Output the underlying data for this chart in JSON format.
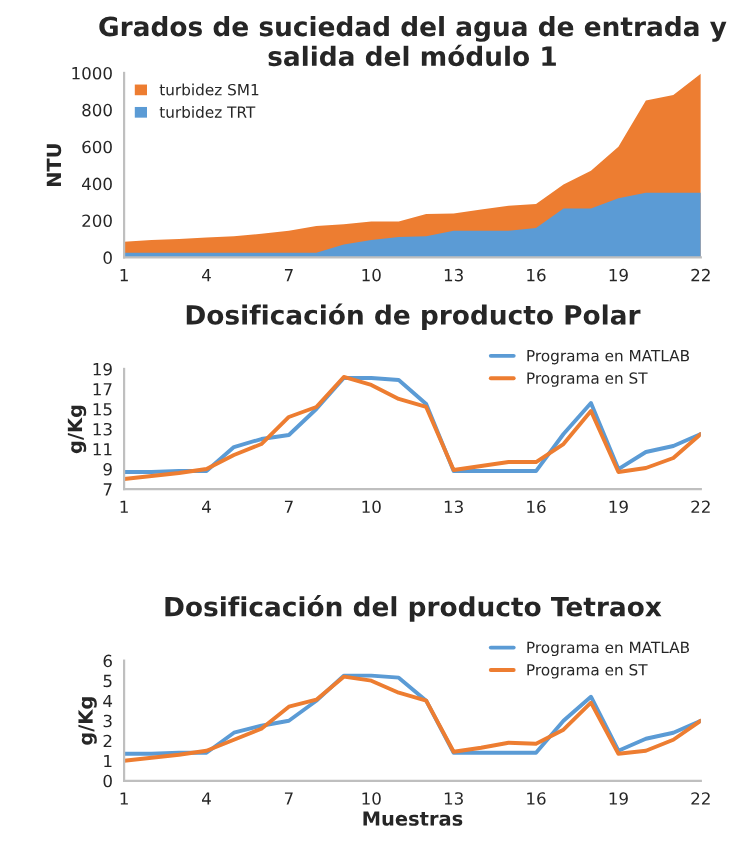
{
  "chart_data": [
    {
      "type": "area",
      "title": "Grados de suciedad del agua de entrada y salida del módulo 1",
      "ylabel": "NTU",
      "x": [
        1,
        2,
        3,
        4,
        5,
        6,
        7,
        8,
        9,
        10,
        11,
        12,
        13,
        14,
        15,
        16,
        17,
        18,
        19,
        20,
        21,
        22
      ],
      "xlim": [
        1,
        22
      ],
      "xticks": [
        1,
        4,
        7,
        10,
        13,
        16,
        19,
        22
      ],
      "ylim": [
        0,
        1000
      ],
      "yticks": [
        0,
        200,
        400,
        600,
        800,
        1000
      ],
      "legend": "top left",
      "grid": false,
      "series": [
        {
          "name": "turbidez SM1",
          "color": "#ed7d31",
          "values": [
            85,
            95,
            100,
            108,
            115,
            128,
            145,
            170,
            180,
            195,
            195,
            235,
            238,
            260,
            280,
            290,
            395,
            470,
            600,
            850,
            880,
            995
          ]
        },
        {
          "name": "turbidez TRT",
          "color": "#5b9bd5",
          "values": [
            25,
            25,
            25,
            25,
            25,
            25,
            25,
            25,
            70,
            95,
            110,
            115,
            145,
            145,
            145,
            160,
            265,
            265,
            320,
            350,
            350,
            350
          ]
        }
      ]
    },
    {
      "type": "line",
      "title": "Dosificación de producto Polar",
      "ylabel": "g/Kg",
      "x": [
        1,
        2,
        3,
        4,
        5,
        6,
        7,
        8,
        9,
        10,
        11,
        12,
        13,
        14,
        15,
        16,
        17,
        18,
        19,
        20,
        21,
        22
      ],
      "xlim": [
        1,
        22
      ],
      "xticks": [
        1,
        4,
        7,
        10,
        13,
        16,
        19,
        22
      ],
      "ylim": [
        7,
        19
      ],
      "yticks": [
        7,
        9,
        11,
        13,
        15,
        17,
        19
      ],
      "legend": "top right",
      "grid": false,
      "marker": "none",
      "line_style": "solid",
      "series": [
        {
          "name": "Programa en MATLAB",
          "color": "#5b9bd5",
          "values": [
            8.7,
            8.7,
            8.8,
            8.8,
            11.2,
            12.0,
            12.4,
            15.0,
            18.1,
            18.1,
            17.9,
            15.5,
            8.8,
            8.8,
            8.8,
            8.8,
            12.5,
            15.6,
            9.0,
            10.7,
            11.3,
            12.5
          ]
        },
        {
          "name": "Programa en ST",
          "color": "#ed7d31",
          "values": [
            8.0,
            8.3,
            8.6,
            9.0,
            10.4,
            11.5,
            14.2,
            15.2,
            18.2,
            17.4,
            16.0,
            15.2,
            8.9,
            9.3,
            9.7,
            9.7,
            11.5,
            14.8,
            8.7,
            9.1,
            10.1,
            12.5
          ]
        }
      ]
    },
    {
      "type": "line",
      "title": "Dosificación del producto Tetraox",
      "xlabel": "Muestras",
      "ylabel": "g/Kg",
      "x": [
        1,
        2,
        3,
        4,
        5,
        6,
        7,
        8,
        9,
        10,
        11,
        12,
        13,
        14,
        15,
        16,
        17,
        18,
        19,
        20,
        21,
        22
      ],
      "xlim": [
        1,
        22
      ],
      "xticks": [
        1,
        4,
        7,
        10,
        13,
        16,
        19,
        22
      ],
      "ylim": [
        0,
        6
      ],
      "yticks": [
        0,
        1,
        2,
        3,
        4,
        5,
        6
      ],
      "legend": "top right",
      "grid": false,
      "marker": "none",
      "line_style": "solid",
      "series": [
        {
          "name": "Programa en MATLAB",
          "color": "#5b9bd5",
          "values": [
            1.35,
            1.35,
            1.4,
            1.4,
            2.4,
            2.75,
            3.0,
            4.0,
            5.25,
            5.25,
            5.15,
            4.0,
            1.4,
            1.4,
            1.4,
            1.4,
            3.0,
            4.2,
            1.5,
            2.1,
            2.4,
            3.0
          ]
        },
        {
          "name": "Programa en ST",
          "color": "#ed7d31",
          "values": [
            1.0,
            1.15,
            1.3,
            1.5,
            2.05,
            2.6,
            3.7,
            4.05,
            5.2,
            5.0,
            4.4,
            4.0,
            1.45,
            1.65,
            1.9,
            1.85,
            2.55,
            3.9,
            1.35,
            1.5,
            2.05,
            3.0
          ]
        }
      ]
    }
  ]
}
